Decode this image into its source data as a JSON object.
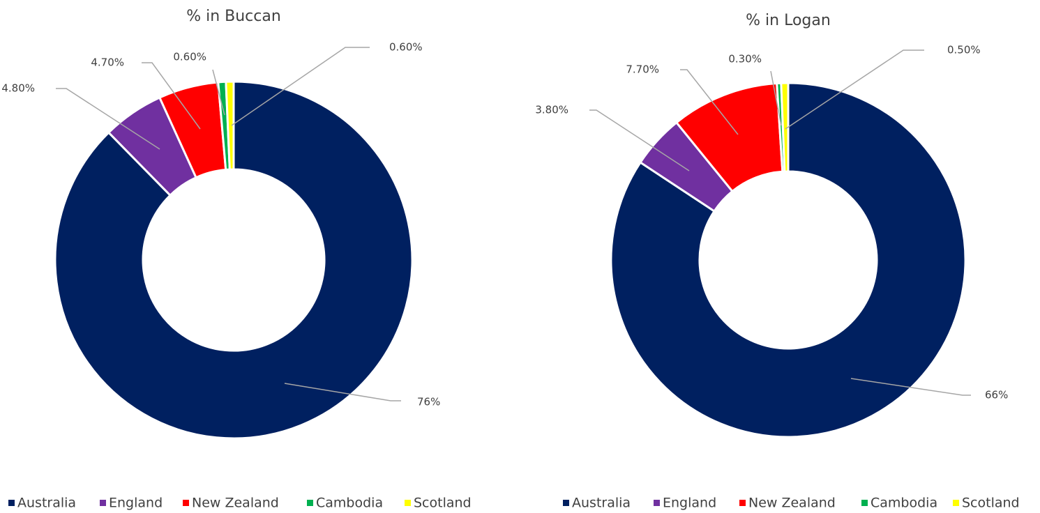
{
  "chart_data": [
    {
      "type": "donut",
      "title": "% in Buccan",
      "categories": [
        "Australia",
        "England",
        "New Zealand",
        "Cambodia",
        "Scotland"
      ],
      "values": [
        76,
        4.8,
        4.7,
        0.6,
        0.6
      ],
      "value_labels": [
        "76%",
        "4.80%",
        "4.70%",
        "0.60%",
        "0.60%"
      ],
      "colors": [
        "#002060",
        "#7030a0",
        "#ff0000",
        "#00b050",
        "#ffff00"
      ]
    },
    {
      "type": "donut",
      "title": "% in Logan",
      "categories": [
        "Australia",
        "England",
        "New Zealand",
        "Cambodia",
        "Scotland"
      ],
      "values": [
        66,
        3.8,
        7.7,
        0.3,
        0.5
      ],
      "value_labels": [
        "66%",
        "3.80%",
        "7.70%",
        "0.30%",
        "0.50%"
      ],
      "colors": [
        "#002060",
        "#7030a0",
        "#ff0000",
        "#00b050",
        "#ffff00"
      ]
    }
  ]
}
